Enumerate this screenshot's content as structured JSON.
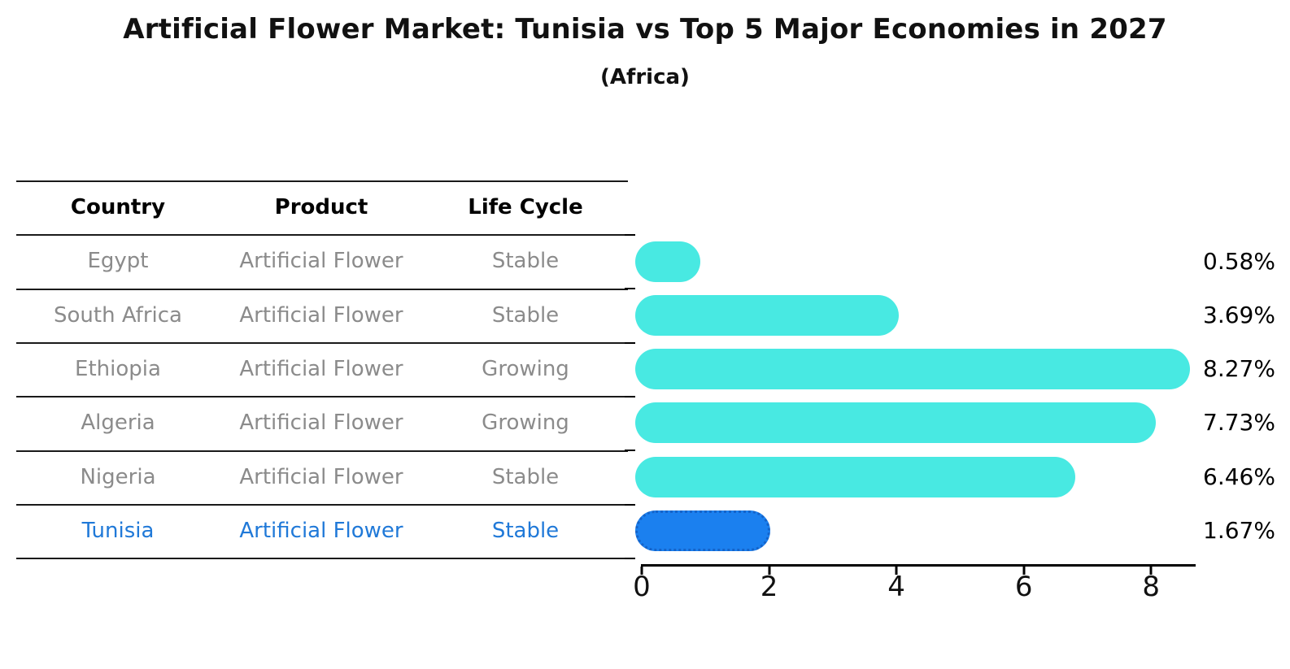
{
  "page": {
    "title": "Artificial Flower Market: Tunisia vs Top 5 Major Economies in 2027",
    "subtitle": "(Africa)"
  },
  "table": {
    "headers": [
      "Country",
      "Product",
      "Life Cycle"
    ],
    "rows": [
      {
        "country": "Egypt",
        "product": "Artificial Flower",
        "life_cycle": "Stable",
        "highlight": false
      },
      {
        "country": "South Africa",
        "product": "Artificial Flower",
        "life_cycle": "Stable",
        "highlight": false
      },
      {
        "country": "Ethiopia",
        "product": "Artificial Flower",
        "life_cycle": "Growing",
        "highlight": false
      },
      {
        "country": "Algeria",
        "product": "Artificial Flower",
        "life_cycle": "Growing",
        "highlight": false
      },
      {
        "country": "Nigeria",
        "product": "Artificial Flower",
        "life_cycle": "Stable",
        "highlight": false
      },
      {
        "country": "Tunisia",
        "product": "Artificial Flower",
        "life_cycle": "Stable",
        "highlight": true
      }
    ]
  },
  "chart_data": {
    "type": "bar",
    "orientation": "horizontal",
    "title": "Artificial Flower Market: Tunisia vs Top 5 Major Economies in 2027",
    "subtitle": "(Africa)",
    "categories": [
      "Egypt",
      "South Africa",
      "Ethiopia",
      "Algeria",
      "Nigeria",
      "Tunisia"
    ],
    "values": [
      0.58,
      3.69,
      8.27,
      7.73,
      6.46,
      1.67
    ],
    "value_labels": [
      "0.58%",
      "3.69%",
      "8.27%",
      "7.73%",
      "6.46%",
      "1.67%"
    ],
    "x_ticks": [
      "0",
      "2",
      "4",
      "6",
      "8"
    ],
    "x_tick_values": [
      0,
      2,
      4,
      6,
      8
    ],
    "xlim": [
      0,
      8.7
    ],
    "grid": false,
    "legend": false,
    "bar_color": "#48E9E2",
    "highlight_color": "#1B80EF",
    "highlight_index": 5,
    "highlight_text_color": "#2079D8",
    "table_text_color": "#8B8B8B"
  }
}
